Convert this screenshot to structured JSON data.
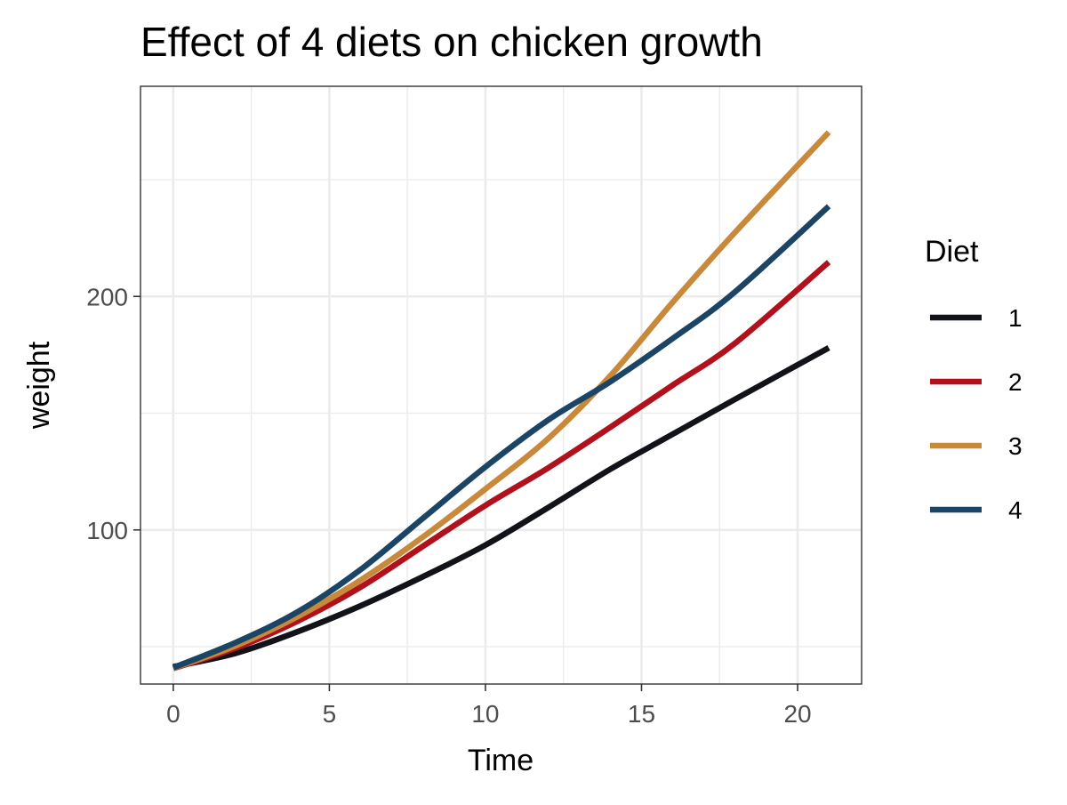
{
  "chart_data": {
    "type": "line",
    "title": "Effect of 4 diets on chicken growth",
    "xlabel": "Time",
    "ylabel": "weight",
    "xlim": [
      -1.05,
      22.05
    ],
    "ylim": [
      34,
      290
    ],
    "xticks": [
      0,
      5,
      10,
      15,
      20
    ],
    "yticks": [
      100,
      200
    ],
    "x_minor_grid": [
      2.5,
      7.5,
      12.5,
      17.5
    ],
    "y_minor_grid": [
      50,
      150,
      250
    ],
    "grid": true,
    "legend": {
      "title": "Diet",
      "placement": "right"
    },
    "x": [
      0,
      2,
      4,
      6,
      8,
      10,
      12,
      14,
      16,
      18,
      21
    ],
    "series": [
      {
        "name": "1",
        "color": "#111318",
        "values": [
          41.4,
          47.2,
          56.5,
          67.5,
          80.0,
          93.5,
          109.5,
          126.0,
          141.0,
          156.0,
          178.0
        ]
      },
      {
        "name": "2",
        "color": "#B0111D",
        "values": [
          40.7,
          49.4,
          61.0,
          75.5,
          93.0,
          110.5,
          126.5,
          144.0,
          162.0,
          180.0,
          214.7
        ]
      },
      {
        "name": "3",
        "color": "#C8893A",
        "values": [
          40.8,
          50.4,
          63.0,
          78.5,
          97.0,
          117.5,
          139.0,
          166.0,
          197.5,
          227.5,
          270.3
        ]
      },
      {
        "name": "4",
        "color": "#1C4565",
        "values": [
          41.0,
          51.8,
          65.0,
          83.0,
          105.0,
          127.0,
          147.0,
          163.5,
          182.0,
          202.0,
          238.6
        ]
      }
    ]
  }
}
